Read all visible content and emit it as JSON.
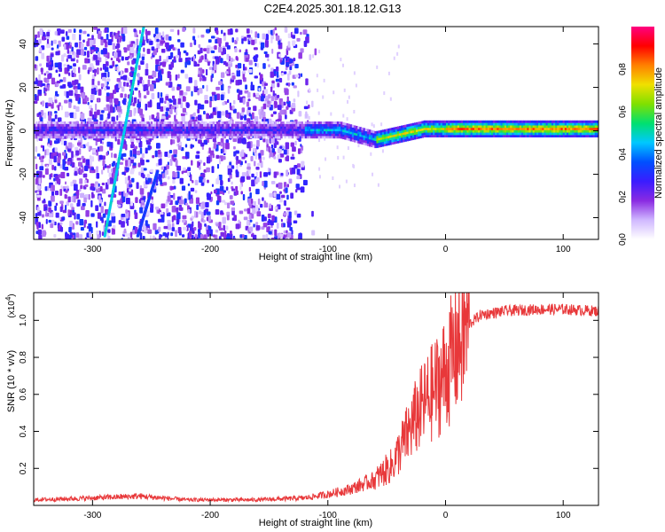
{
  "title": "C2E4.2025.301.18.12.G13",
  "colors": {
    "snr_line": "#e8383a",
    "frame": "#000000"
  },
  "chart_data": [
    {
      "type": "heatmap",
      "xlabel": "Height of straight line (km)",
      "ylabel": "Frequency (Hz)",
      "xlim": [
        -350,
        130
      ],
      "ylim": [
        -50,
        48
      ],
      "xticks": [
        -300,
        -200,
        -100,
        0,
        100
      ],
      "xtick_labels": [
        "-300",
        "-200",
        "-100",
        "0",
        "100"
      ],
      "yticks": [
        -40,
        -20,
        0,
        20,
        40
      ],
      "ytick_labels": [
        "-40",
        "-20",
        "0",
        "20",
        "40"
      ],
      "colorbar": {
        "label": "Normalized spectral amplitude",
        "range": [
          0,
          1
        ],
        "ticks": [
          0.0,
          0.2,
          0.4,
          0.6,
          0.8
        ],
        "tick_labels": [
          "0.0",
          "0.2",
          "0.4",
          "0.6",
          "0.8"
        ],
        "stops": [
          "#ffffff",
          "#d0b8ff",
          "#8a2be2",
          "#3a1cff",
          "#0050ff",
          "#00c8ff",
          "#00e070",
          "#80e000",
          "#f0e000",
          "#ff8000",
          "#ff0000",
          "#ff0080"
        ]
      },
      "features": {
        "noise_region_x": [
          -350,
          -120
        ],
        "main_line_y": [
          -5,
          3
        ],
        "steep_line_1": [
          [
            -290,
            -48
          ],
          [
            -257,
            48
          ]
        ],
        "steep_line_2": [
          [
            -262,
            -48
          ],
          [
            -245,
            -18
          ]
        ]
      }
    },
    {
      "type": "line",
      "xlabel": "Height of straight line (km)",
      "ylabel": "SNR (10 * v/v)",
      "scale_label": "(x10",
      "scale_exp": "4",
      "xlim": [
        -350,
        130
      ],
      "ylim": [
        0,
        1.15
      ],
      "xticks": [
        -300,
        -200,
        -100,
        0,
        100
      ],
      "xtick_labels": [
        "-300",
        "-200",
        "-100",
        "0",
        "100"
      ],
      "yticks": [
        0.2,
        0.4,
        0.6,
        0.8,
        1.0
      ],
      "ytick_labels": [
        "0.2",
        "0.4",
        "0.6",
        "0.8",
        "1.0"
      ],
      "profile_x": [
        -350,
        -300,
        -260,
        -220,
        -160,
        -120,
        -100,
        -80,
        -60,
        -45,
        -35,
        -25,
        -18,
        -10,
        0,
        10,
        20,
        30,
        50,
        80,
        100,
        130
      ],
      "profile_y": [
        0.03,
        0.04,
        0.05,
        0.03,
        0.03,
        0.04,
        0.06,
        0.09,
        0.14,
        0.22,
        0.35,
        0.48,
        0.55,
        0.62,
        0.72,
        0.86,
        0.98,
        1.03,
        1.05,
        1.06,
        1.06,
        1.05
      ]
    }
  ]
}
